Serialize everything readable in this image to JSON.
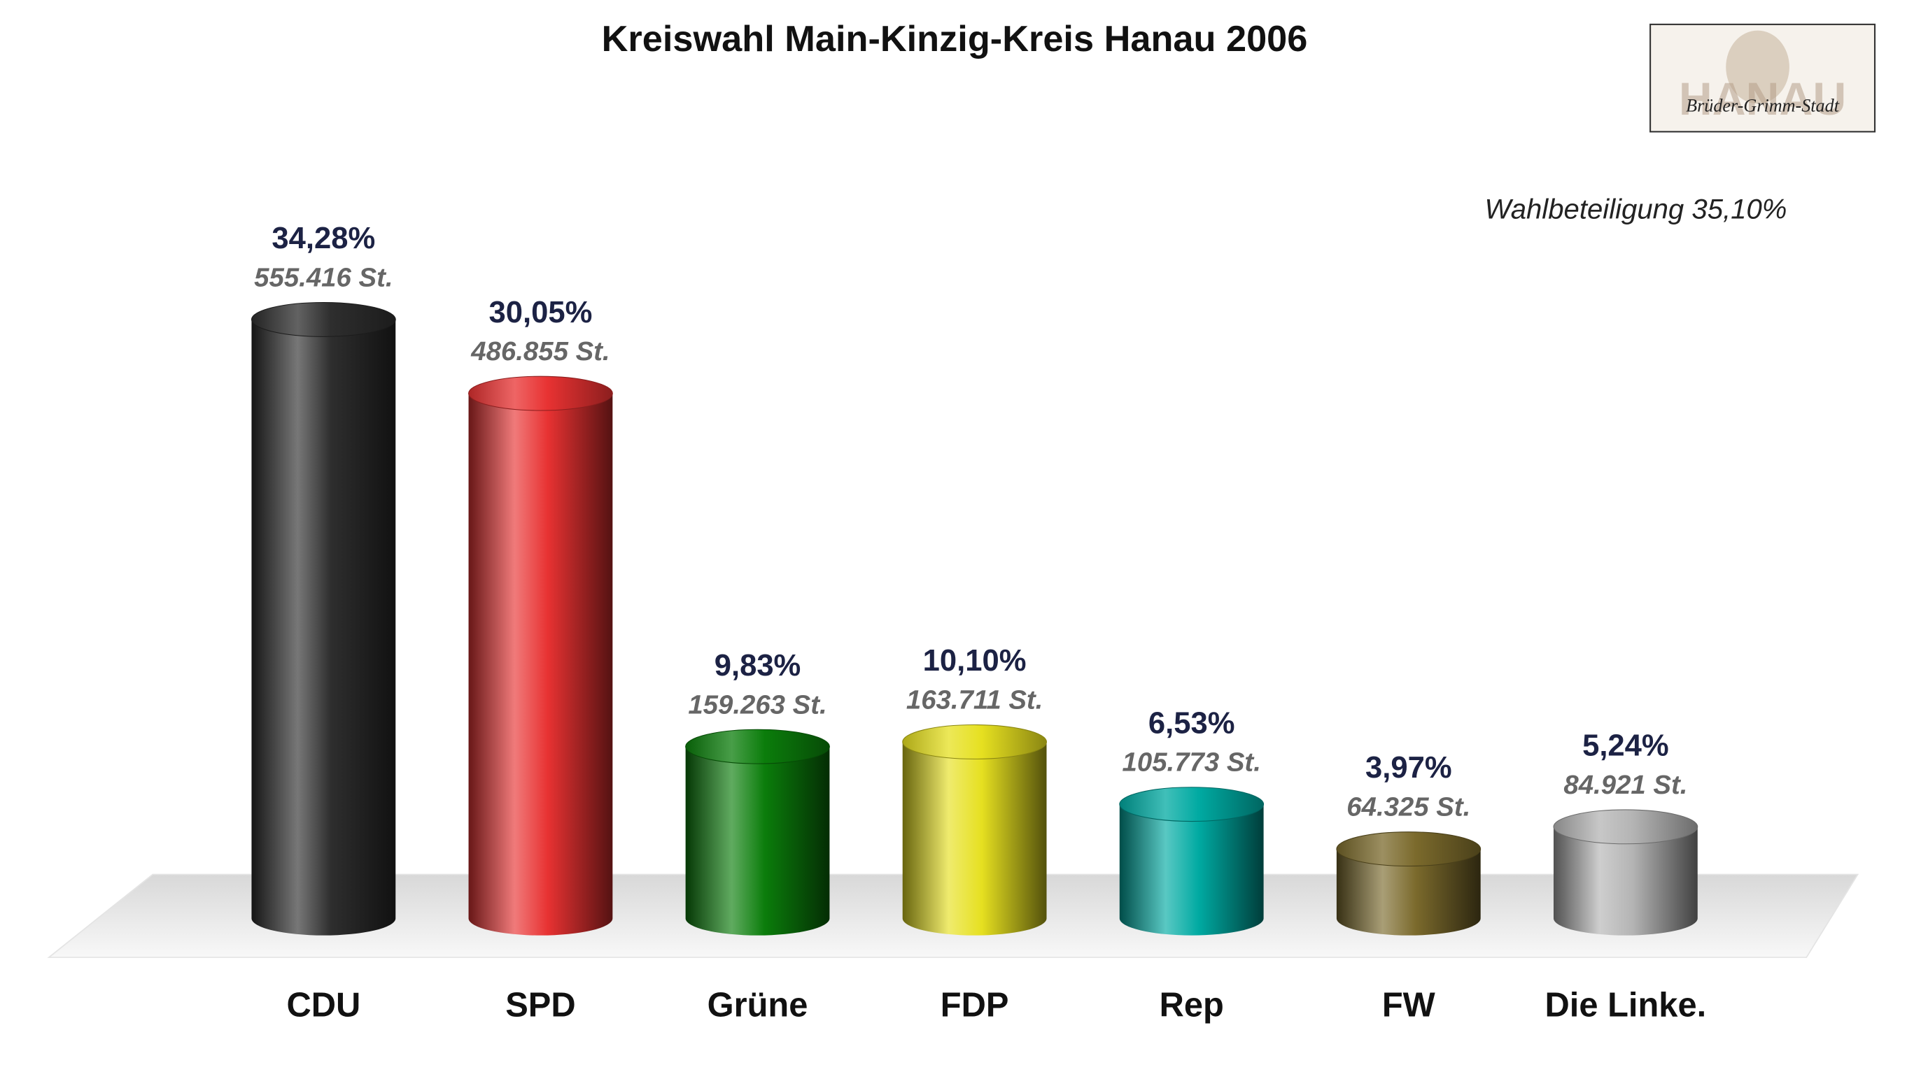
{
  "chart_data": {
    "type": "bar",
    "title": "Kreiswahl Main-Kinzig-Kreis Hanau 2006",
    "annotation": "Wahlbeteiligung 35,10%",
    "logo": {
      "title": "HANAU",
      "subtitle": "Brüder-Grimm-Stadt"
    },
    "categories": [
      "CDU",
      "SPD",
      "Grüne",
      "FDP",
      "Rep",
      "FW",
      "Die Linke."
    ],
    "values": [
      34.28,
      30.05,
      9.83,
      10.1,
      6.53,
      3.97,
      5.24
    ],
    "value_labels": [
      "34,28%",
      "30,05%",
      "9,83%",
      "10,10%",
      "6,53%",
      "3,97%",
      "5,24%"
    ],
    "votes": {
      "values": [
        555416,
        486855,
        159263,
        163711,
        105773,
        64325,
        84921
      ],
      "value_labels": [
        "555.416 St.",
        "486.855 St.",
        "159.263 St.",
        "163.711 St.",
        "105.773 St.",
        "64.325 St.",
        "84.921 St."
      ]
    },
    "colors": [
      "#2e2e2e",
      "#e83232",
      "#0b7d0b",
      "#e6e020",
      "#00aaa2",
      "#7b6a2c",
      "#b4b4b4"
    ]
  }
}
